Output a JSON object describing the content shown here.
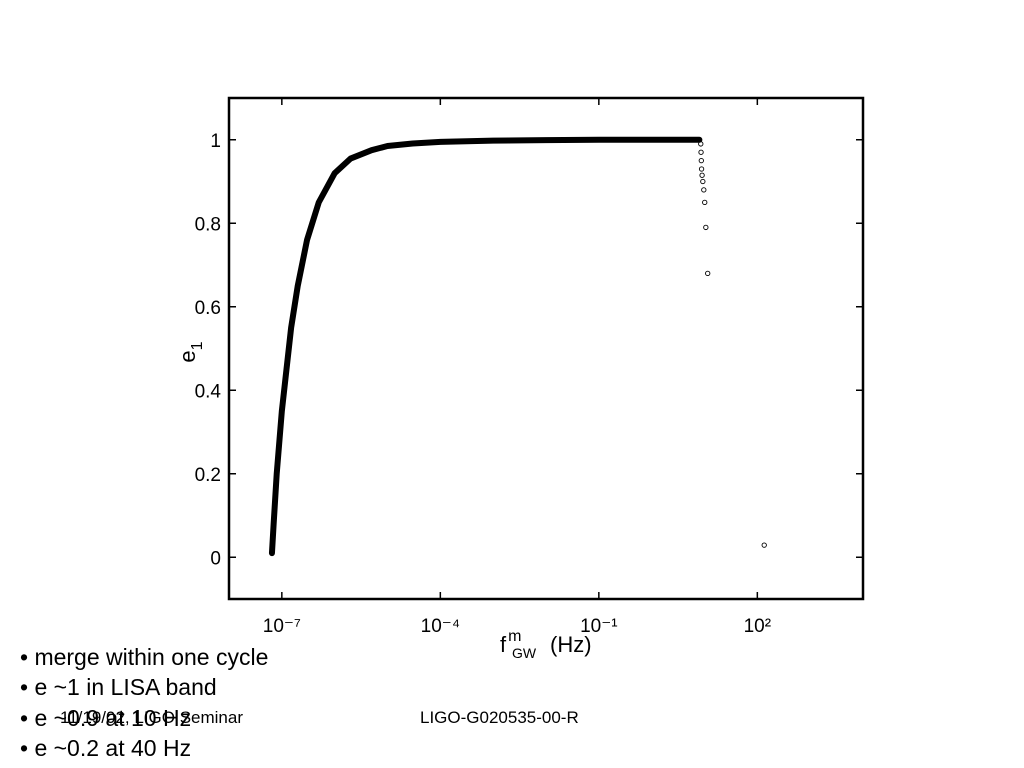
{
  "chart_data": {
    "type": "scatter",
    "x_label": {
      "main": "f",
      "sup": "m",
      "sub": "GW",
      "unit": "(Hz)"
    },
    "y_label": {
      "main": "e",
      "sub": "1"
    },
    "xscale": "log",
    "xlim": [
      1e-08,
      10000
    ],
    "ylim": [
      -0.1,
      1.1
    ],
    "xticks": [
      {
        "value": 1e-07,
        "label": "10⁻⁷"
      },
      {
        "value": 0.0001,
        "label": "10⁻⁴"
      },
      {
        "value": 0.1,
        "label": "10⁻¹"
      },
      {
        "value": 100,
        "label": "10²"
      }
    ],
    "yticks": [
      0,
      0.2,
      0.4,
      0.6,
      0.8,
      1
    ],
    "color": "#000000",
    "series": [
      {
        "marker": "line",
        "x": [
          6.5e-08,
          7e-08,
          8e-08,
          1e-07,
          1.5e-07,
          2e-07,
          3e-07,
          5e-07,
          1e-06,
          2e-06,
          5e-06,
          1e-05,
          3e-05,
          0.0001,
          0.001,
          0.01,
          0.1,
          1,
          8
        ],
        "values": [
          0.01,
          0.08,
          0.2,
          0.35,
          0.55,
          0.65,
          0.76,
          0.85,
          0.92,
          0.955,
          0.975,
          0.985,
          0.991,
          0.995,
          0.998,
          0.999,
          1,
          1,
          1
        ]
      },
      {
        "marker": "circle",
        "x": [
          8.5,
          8.6,
          8.7,
          8.8,
          9.0,
          9.3,
          9.7,
          10.1,
          10.6,
          11.5,
          135
        ],
        "values": [
          0.99,
          0.97,
          0.95,
          0.93,
          0.915,
          0.9,
          0.88,
          0.85,
          0.79,
          0.68,
          0.029
        ]
      }
    ]
  },
  "bullets": [
    "• merge within one cycle",
    "• e ~1 in LISA band",
    "• e ~0.9 at 10 Hz",
    "• e ~0.2 at 40 Hz"
  ],
  "footer": {
    "left": "11/19/02, LIGO Seminar",
    "right": "LIGO-G020535-00-R"
  }
}
